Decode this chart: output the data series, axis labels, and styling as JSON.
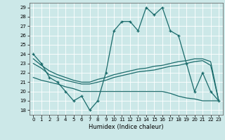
{
  "xlabel": "Humidex (Indice chaleur)",
  "background_color": "#cce8e8",
  "grid_color": "#ffffff",
  "line_color": "#1a6b6b",
  "xlim": [
    -0.5,
    23.5
  ],
  "ylim": [
    17.5,
    29.5
  ],
  "xticks": [
    0,
    1,
    2,
    3,
    4,
    5,
    6,
    7,
    8,
    9,
    10,
    11,
    12,
    13,
    14,
    15,
    16,
    17,
    18,
    19,
    20,
    21,
    22,
    23
  ],
  "yticks": [
    18,
    19,
    20,
    21,
    22,
    23,
    24,
    25,
    26,
    27,
    28,
    29
  ],
  "line1_marker": {
    "x": [
      0,
      1,
      2,
      3,
      4,
      5,
      6,
      7,
      8,
      9,
      10,
      11,
      12,
      13,
      14,
      15,
      16,
      17,
      18,
      19,
      20,
      21,
      22,
      23
    ],
    "y": [
      24.0,
      23.0,
      21.5,
      21.0,
      20.0,
      19.0,
      19.5,
      18.0,
      19.0,
      22.0,
      26.5,
      27.5,
      27.5,
      26.5,
      29.0,
      28.2,
      29.0,
      26.5,
      26.0,
      23.0,
      20.0,
      22.0,
      20.0,
      19.0
    ]
  },
  "line2": {
    "x": [
      0,
      1,
      2,
      3,
      4,
      5,
      6,
      7,
      8,
      9,
      10,
      11,
      12,
      13,
      14,
      15,
      16,
      17,
      18,
      19,
      20,
      21,
      22,
      23
    ],
    "y": [
      23.5,
      22.8,
      22.2,
      21.8,
      21.5,
      21.2,
      21.0,
      21.0,
      21.3,
      21.5,
      21.8,
      22.0,
      22.2,
      22.4,
      22.5,
      22.7,
      22.8,
      23.0,
      23.2,
      23.3,
      23.5,
      23.5,
      23.2,
      19.0
    ]
  },
  "line3": {
    "x": [
      0,
      1,
      2,
      3,
      4,
      5,
      6,
      7,
      8,
      9,
      10,
      11,
      12,
      13,
      14,
      15,
      16,
      17,
      18,
      19,
      20,
      21,
      22,
      23
    ],
    "y": [
      23.0,
      22.5,
      21.8,
      21.5,
      21.2,
      21.0,
      20.8,
      20.8,
      21.0,
      21.2,
      21.5,
      21.7,
      21.9,
      22.1,
      22.2,
      22.3,
      22.5,
      22.7,
      22.8,
      23.0,
      23.2,
      23.3,
      22.8,
      19.0
    ]
  },
  "line4": {
    "x": [
      0,
      1,
      2,
      3,
      4,
      5,
      6,
      7,
      8,
      9,
      10,
      11,
      12,
      13,
      14,
      15,
      16,
      17,
      18,
      19,
      20,
      21,
      22,
      23
    ],
    "y": [
      21.5,
      21.2,
      21.0,
      20.8,
      20.5,
      20.3,
      20.0,
      20.0,
      20.0,
      20.0,
      20.0,
      20.0,
      20.0,
      20.0,
      20.0,
      20.0,
      20.0,
      19.8,
      19.5,
      19.3,
      19.2,
      19.0,
      19.0,
      19.0
    ]
  }
}
